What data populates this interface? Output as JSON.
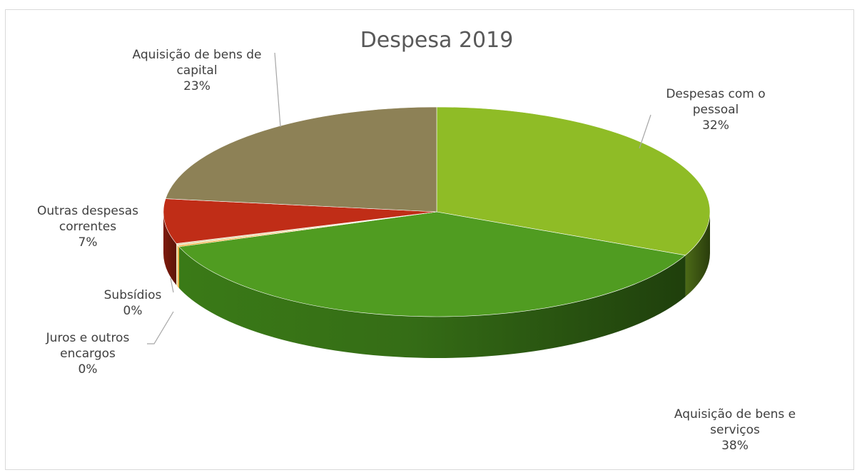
{
  "chart_data": {
    "type": "pie",
    "style": "3d",
    "title": "Despesa 2019",
    "slices": [
      {
        "name": "Despesas com o pessoal",
        "label_lines": [
          "Despesas com o",
          "pessoal"
        ],
        "pct_label": "32%",
        "value": 31.8,
        "color": "#8fbc26"
      },
      {
        "name": "Aquisição de bens e serviços",
        "label_lines": [
          "Aquisição  de bens e",
          "serviços"
        ],
        "pct_label": "38%",
        "value": 37.8,
        "color": "#509c21"
      },
      {
        "name": "Juros e outros encargos",
        "label_lines": [
          "Juros e outros",
          "encargos"
        ],
        "pct_label": "0%",
        "value": 0.2,
        "color": "#f5a623"
      },
      {
        "name": "Subsídios",
        "label_lines": [
          "Subsídios"
        ],
        "pct_label": "0%",
        "value": 0.3,
        "color": "#e8dcb0"
      },
      {
        "name": "Outras despesas correntes",
        "label_lines": [
          "Outras despesas",
          "correntes"
        ],
        "pct_label": "7%",
        "value": 6.9,
        "color": "#c02d17"
      },
      {
        "name": "Aquisição de bens de capital",
        "label_lines": [
          "Aquisição de bens de",
          "capital"
        ],
        "pct_label": "23%",
        "value": 23.0,
        "color": "#8d8156"
      }
    ],
    "legend": "none",
    "labels": "outside with leader lines"
  }
}
